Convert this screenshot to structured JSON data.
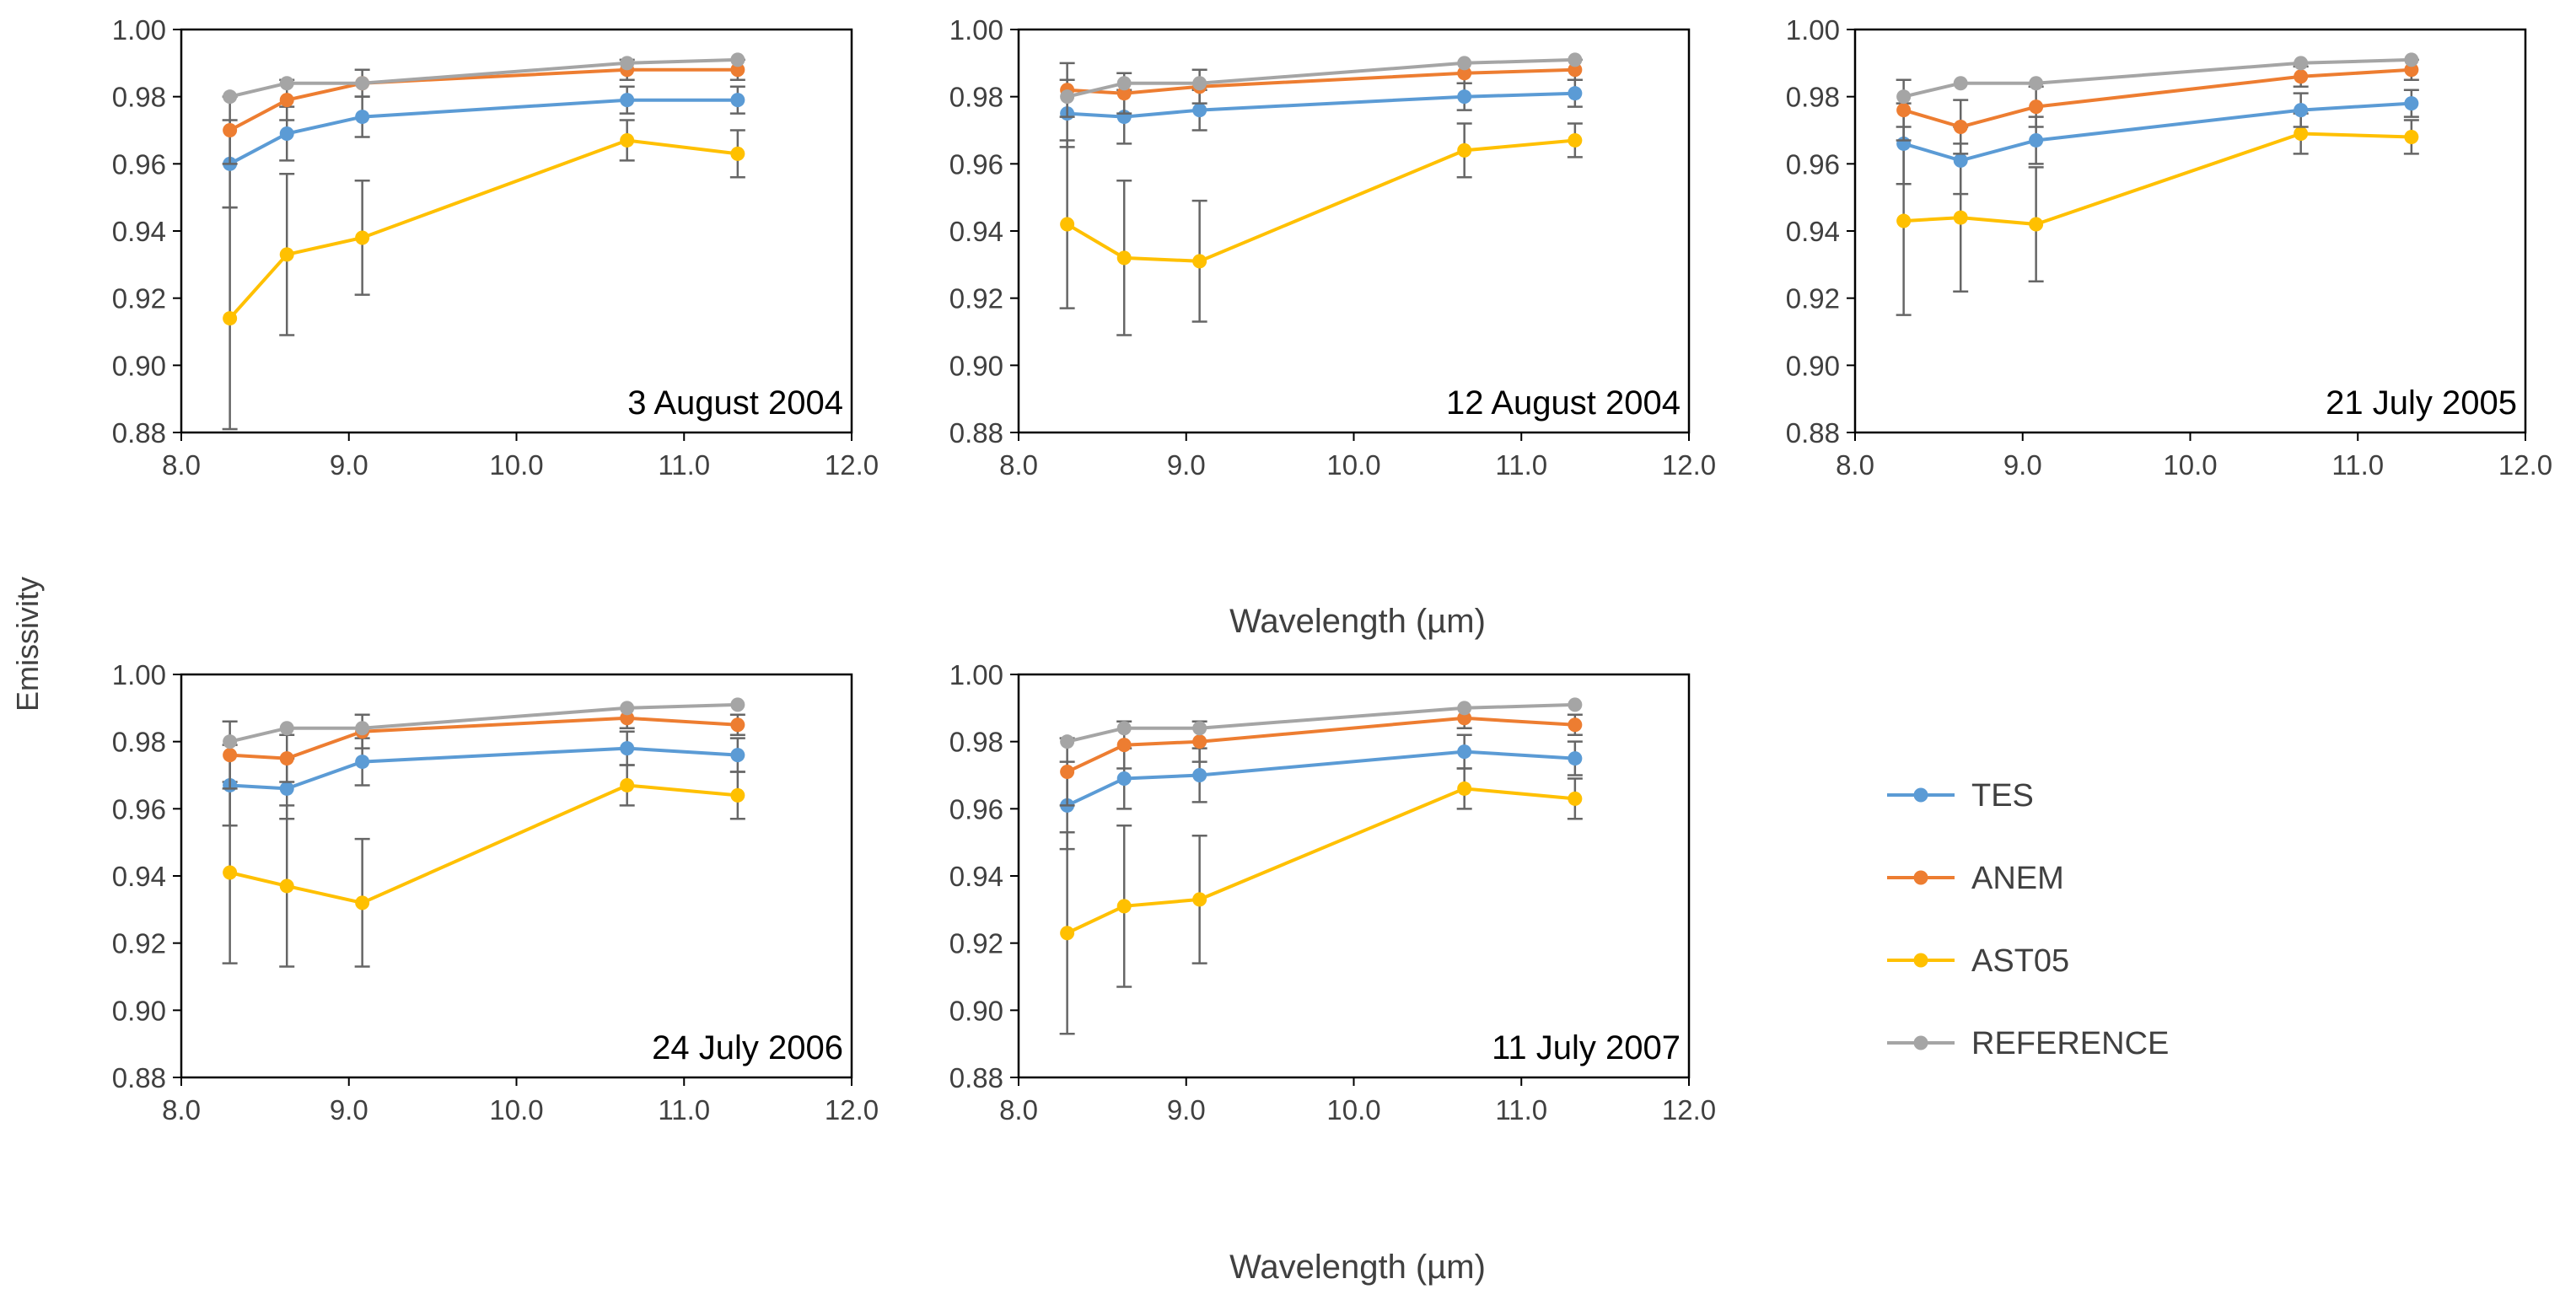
{
  "figure": {
    "y_axis_label": "Emissivity",
    "x_axis_label_top": "Wavelength (µm)",
    "x_axis_label_bottom": "Wavelength (µm)"
  },
  "legend": [
    {
      "name": "TES",
      "color": "#5b9bd5"
    },
    {
      "name": "ANEM",
      "color": "#ed7d31"
    },
    {
      "name": "AST05",
      "color": "#ffc000"
    },
    {
      "name": "REFERENCE",
      "color": "#a5a5a5"
    }
  ],
  "chart_data": [
    {
      "type": "line",
      "title": "3 August 2004",
      "xlabel": "Wavelength (µm)",
      "ylabel": "Emissivity",
      "xlim": [
        8.0,
        12.0
      ],
      "ylim": [
        0.88,
        1.0
      ],
      "x_ticks": [
        "8.0",
        "9.0",
        "10.0",
        "11.0",
        "12.0"
      ],
      "y_ticks": [
        "0.88",
        "0.90",
        "0.92",
        "0.94",
        "0.96",
        "0.98",
        "1.00"
      ],
      "x": [
        8.29,
        8.63,
        9.08,
        10.66,
        11.32
      ],
      "series": [
        {
          "name": "TES",
          "values": [
            0.96,
            0.969,
            0.974,
            0.979,
            0.979
          ],
          "errors": [
            0.013,
            0.008,
            0.006,
            0.004,
            0.004
          ]
        },
        {
          "name": "ANEM",
          "values": [
            0.97,
            0.979,
            0.984,
            0.988,
            0.988
          ],
          "errors": [
            0.01,
            0.006,
            0.004,
            0.003,
            0.003
          ]
        },
        {
          "name": "AST05",
          "values": [
            0.914,
            0.933,
            0.938,
            0.967,
            0.963
          ],
          "errors": [
            0.033,
            0.024,
            0.017,
            0.006,
            0.007
          ]
        },
        {
          "name": "REFERENCE",
          "values": [
            0.98,
            0.984,
            0.984,
            0.99,
            0.991
          ],
          "errors": [
            0,
            0,
            0,
            0,
            0
          ]
        }
      ]
    },
    {
      "type": "line",
      "title": "12 August 2004",
      "xlabel": "Wavelength (µm)",
      "ylabel": "Emissivity",
      "xlim": [
        8.0,
        12.0
      ],
      "ylim": [
        0.88,
        1.0
      ],
      "x_ticks": [
        "8.0",
        "9.0",
        "10.0",
        "11.0",
        "12.0"
      ],
      "y_ticks": [
        "0.88",
        "0.90",
        "0.92",
        "0.94",
        "0.96",
        "0.98",
        "1.00"
      ],
      "x": [
        8.29,
        8.63,
        9.08,
        10.66,
        11.32
      ],
      "series": [
        {
          "name": "TES",
          "values": [
            0.975,
            0.974,
            0.976,
            0.98,
            0.981
          ],
          "errors": [
            0.01,
            0.008,
            0.006,
            0.004,
            0.004
          ]
        },
        {
          "name": "ANEM",
          "values": [
            0.982,
            0.981,
            0.983,
            0.987,
            0.988
          ],
          "errors": [
            0.008,
            0.006,
            0.005,
            0.003,
            0.003
          ]
        },
        {
          "name": "AST05",
          "values": [
            0.942,
            0.932,
            0.931,
            0.964,
            0.967
          ],
          "errors": [
            0.025,
            0.023,
            0.018,
            0.008,
            0.005
          ]
        },
        {
          "name": "REFERENCE",
          "values": [
            0.98,
            0.984,
            0.984,
            0.99,
            0.991
          ],
          "errors": [
            0,
            0,
            0,
            0,
            0
          ]
        }
      ]
    },
    {
      "type": "line",
      "title": "21 July 2005",
      "xlabel": "Wavelength (µm)",
      "ylabel": "Emissivity",
      "xlim": [
        8.0,
        12.0
      ],
      "ylim": [
        0.88,
        1.0
      ],
      "x_ticks": [
        "8.0",
        "9.0",
        "10.0",
        "11.0",
        "12.0"
      ],
      "y_ticks": [
        "0.88",
        "0.90",
        "0.92",
        "0.94",
        "0.96",
        "0.98",
        "1.00"
      ],
      "x": [
        8.29,
        8.63,
        9.08,
        10.66,
        11.32
      ],
      "series": [
        {
          "name": "TES",
          "values": [
            0.966,
            0.961,
            0.967,
            0.976,
            0.978
          ],
          "errors": [
            0.012,
            0.01,
            0.007,
            0.005,
            0.004
          ]
        },
        {
          "name": "ANEM",
          "values": [
            0.976,
            0.971,
            0.977,
            0.986,
            0.988
          ],
          "errors": [
            0.009,
            0.008,
            0.006,
            0.003,
            0.003
          ]
        },
        {
          "name": "AST05",
          "values": [
            0.943,
            0.944,
            0.942,
            0.969,
            0.968
          ],
          "errors": [
            0.028,
            0.022,
            0.017,
            0.006,
            0.005
          ]
        },
        {
          "name": "REFERENCE",
          "values": [
            0.98,
            0.984,
            0.984,
            0.99,
            0.991
          ],
          "errors": [
            0,
            0,
            0,
            0,
            0
          ]
        }
      ]
    },
    {
      "type": "line",
      "title": "24 July 2006",
      "xlabel": "Wavelength (µm)",
      "ylabel": "Emissivity",
      "xlim": [
        8.0,
        12.0
      ],
      "ylim": [
        0.88,
        1.0
      ],
      "x_ticks": [
        "8.0",
        "9.0",
        "10.0",
        "11.0",
        "12.0"
      ],
      "y_ticks": [
        "0.88",
        "0.90",
        "0.92",
        "0.94",
        "0.96",
        "0.98",
        "1.00"
      ],
      "x": [
        8.29,
        8.63,
        9.08,
        10.66,
        11.32
      ],
      "series": [
        {
          "name": "TES",
          "values": [
            0.967,
            0.966,
            0.974,
            0.978,
            0.976
          ],
          "errors": [
            0.012,
            0.009,
            0.007,
            0.005,
            0.005
          ]
        },
        {
          "name": "ANEM",
          "values": [
            0.976,
            0.975,
            0.983,
            0.987,
            0.985
          ],
          "errors": [
            0.01,
            0.007,
            0.005,
            0.003,
            0.003
          ]
        },
        {
          "name": "AST05",
          "values": [
            0.941,
            0.937,
            0.932,
            0.967,
            0.964
          ],
          "errors": [
            0.027,
            0.024,
            0.019,
            0.006,
            0.007
          ]
        },
        {
          "name": "REFERENCE",
          "values": [
            0.98,
            0.984,
            0.984,
            0.99,
            0.991
          ],
          "errors": [
            0,
            0,
            0,
            0,
            0
          ]
        }
      ]
    },
    {
      "type": "line",
      "title": "11 July 2007",
      "xlabel": "Wavelength (µm)",
      "ylabel": "Emissivity",
      "xlim": [
        8.0,
        12.0
      ],
      "ylim": [
        0.88,
        1.0
      ],
      "x_ticks": [
        "8.0",
        "9.0",
        "10.0",
        "11.0",
        "12.0"
      ],
      "y_ticks": [
        "0.88",
        "0.90",
        "0.92",
        "0.94",
        "0.96",
        "0.98",
        "1.00"
      ],
      "x": [
        8.29,
        8.63,
        9.08,
        10.66,
        11.32
      ],
      "series": [
        {
          "name": "TES",
          "values": [
            0.961,
            0.969,
            0.97,
            0.977,
            0.975
          ],
          "errors": [
            0.013,
            0.009,
            0.008,
            0.005,
            0.005
          ]
        },
        {
          "name": "ANEM",
          "values": [
            0.971,
            0.979,
            0.98,
            0.987,
            0.985
          ],
          "errors": [
            0.01,
            0.007,
            0.006,
            0.003,
            0.003
          ]
        },
        {
          "name": "AST05",
          "values": [
            0.923,
            0.931,
            0.933,
            0.966,
            0.963
          ],
          "errors": [
            0.03,
            0.024,
            0.019,
            0.006,
            0.006
          ]
        },
        {
          "name": "REFERENCE",
          "values": [
            0.98,
            0.984,
            0.984,
            0.99,
            0.991
          ],
          "errors": [
            0,
            0,
            0,
            0,
            0
          ]
        }
      ]
    }
  ]
}
